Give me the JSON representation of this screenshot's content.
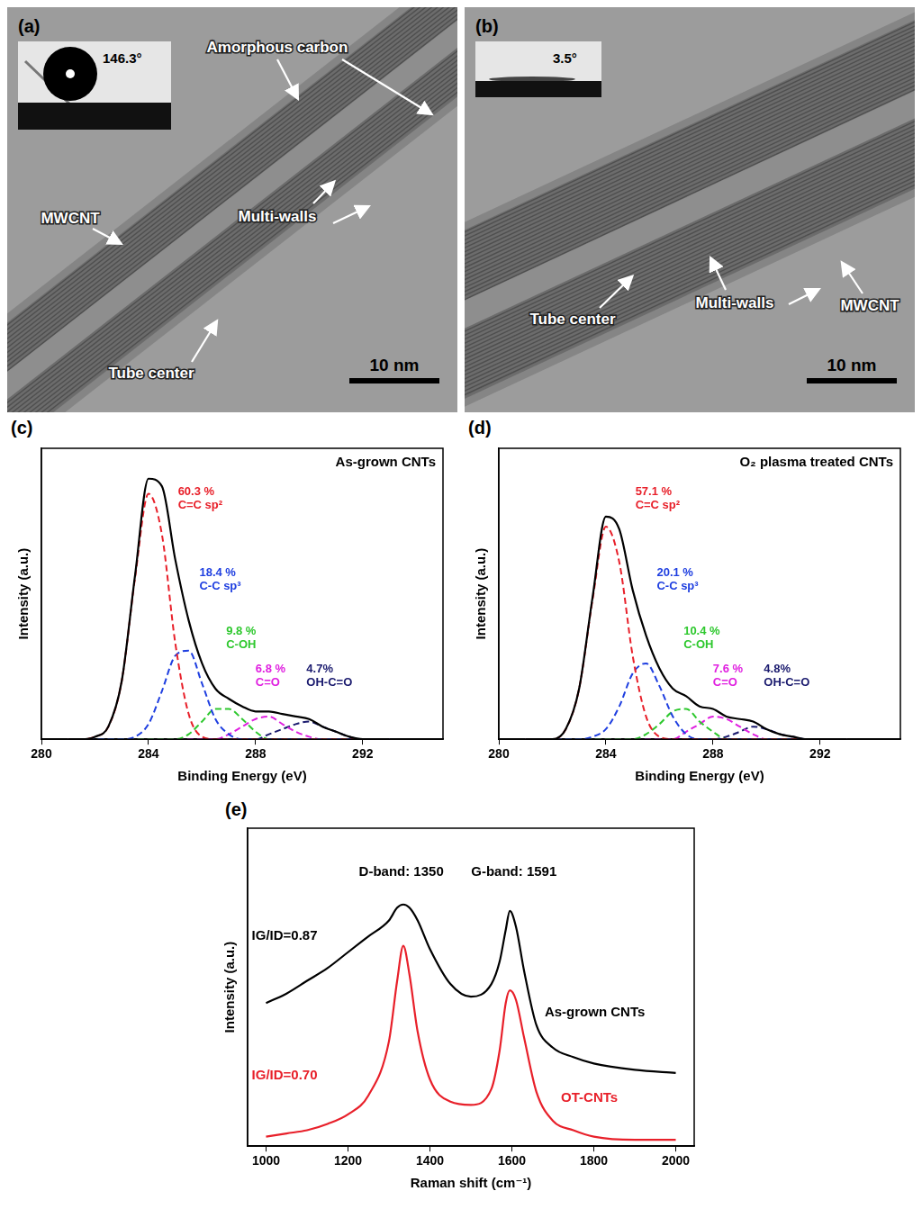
{
  "images": [
    {
      "panel": "(a)",
      "contact_angle": "146.3°",
      "labels": [
        "Amorphous carbon",
        "MWCNT",
        "Multi-walls",
        "Tube center"
      ],
      "scale_bar": "10 nm"
    },
    {
      "panel": "(b)",
      "contact_angle": "3.5°",
      "labels": [
        "Tube center",
        "Multi-walls",
        "MWCNT"
      ],
      "scale_bar": "10 nm"
    }
  ],
  "chart_data": [
    {
      "panel": "(c)",
      "type": "line",
      "title": "As-grown CNTs",
      "x_label": "Binding Energy (eV)",
      "y_label": "Intensity (a.u.)",
      "x": [
        281,
        281.5,
        282,
        282.5,
        283,
        283.5,
        284,
        284.5,
        285,
        285.5,
        286,
        286.5,
        287,
        287.5,
        288,
        288.5,
        289,
        289.5,
        290,
        290.5,
        291,
        291.5,
        292,
        292.5,
        293
      ],
      "xlim": [
        280,
        295
      ],
      "xticks": [
        280,
        284,
        288,
        292
      ],
      "ylim": [
        0,
        1.15
      ],
      "yticks": [],
      "tick_labels": "x",
      "grid": false,
      "series": [
        {
          "color": "#000000",
          "line_style": "solid",
          "values": [
            0,
            0,
            0.01,
            0.05,
            0.23,
            0.65,
            1.03,
            1.0,
            0.71,
            0.47,
            0.3,
            0.2,
            0.16,
            0.13,
            0.11,
            0.11,
            0.1,
            0.09,
            0.08,
            0.05,
            0.03,
            0.01,
            0,
            0,
            0
          ]
        },
        {
          "name": "C=C sp²",
          "label": "60.3 %",
          "color": "#e8202a",
          "line_style": "dashed",
          "values": [
            0,
            0,
            0.01,
            0.05,
            0.23,
            0.64,
            0.97,
            0.81,
            0.38,
            0.1,
            0.01,
            0,
            0,
            0,
            0,
            0,
            0,
            0,
            0,
            0,
            0,
            0,
            0,
            0,
            0
          ]
        },
        {
          "name": "C-C sp³",
          "label": "18.4 %",
          "color": "#1f3fe0",
          "line_style": "dashed",
          "values": [
            0,
            0,
            0,
            0,
            0,
            0.01,
            0.06,
            0.19,
            0.33,
            0.35,
            0.22,
            0.08,
            0.02,
            0,
            0,
            0,
            0,
            0,
            0,
            0,
            0,
            0,
            0,
            0,
            0
          ]
        },
        {
          "name": "C-OH",
          "label": "9.8 %",
          "color": "#2ec82e",
          "line_style": "dashed",
          "values": [
            0,
            0,
            0,
            0,
            0,
            0,
            0,
            0,
            0,
            0.02,
            0.07,
            0.12,
            0.12,
            0.08,
            0.03,
            0,
            0,
            0,
            0,
            0,
            0,
            0,
            0,
            0,
            0
          ]
        },
        {
          "name": "C=O",
          "label": "6.8 %",
          "color": "#e020e0",
          "line_style": "dashed",
          "values": [
            0,
            0,
            0,
            0,
            0,
            0,
            0,
            0,
            0,
            0,
            0,
            0,
            0.02,
            0.05,
            0.08,
            0.09,
            0.06,
            0.03,
            0.01,
            0,
            0,
            0,
            0,
            0,
            0
          ]
        },
        {
          "name": "OH-C=O",
          "label": "4.7%",
          "color": "#1a1a6e",
          "line_style": "dashed",
          "values": [
            0,
            0,
            0,
            0,
            0,
            0,
            0,
            0,
            0,
            0,
            0,
            0,
            0,
            0,
            0,
            0.02,
            0.04,
            0.06,
            0.07,
            0.05,
            0.03,
            0.01,
            0,
            0,
            0
          ]
        }
      ]
    },
    {
      "panel": "(d)",
      "type": "line",
      "title": "O₂ plasma treated CNTs",
      "x_label": "Binding Energy (eV)",
      "y_label": "Intensity (a.u.)",
      "x": [
        281,
        281.5,
        282,
        282.5,
        283,
        283.5,
        284,
        284.5,
        285,
        285.5,
        286,
        286.5,
        287,
        287.5,
        288,
        288.5,
        289,
        289.5,
        290,
        290.5,
        291,
        291.5,
        292,
        292.5,
        293
      ],
      "xlim": [
        280,
        295
      ],
      "xticks": [
        280,
        284,
        288,
        292
      ],
      "ylim": [
        0,
        1.15
      ],
      "yticks": [],
      "tick_labels": "x",
      "grid": false,
      "series": [
        {
          "color": "#000000",
          "line_style": "solid",
          "values": [
            0,
            0,
            0,
            0.04,
            0.2,
            0.56,
            0.88,
            0.83,
            0.59,
            0.41,
            0.28,
            0.2,
            0.17,
            0.13,
            0.12,
            0.09,
            0.08,
            0.07,
            0.04,
            0.02,
            0.01,
            0,
            0,
            0,
            0
          ]
        },
        {
          "name": "C=C sp²",
          "label": "57.1 %",
          "color": "#e8202a",
          "line_style": "dashed",
          "values": [
            0,
            0,
            0,
            0.04,
            0.2,
            0.55,
            0.84,
            0.7,
            0.33,
            0.09,
            0.01,
            0,
            0,
            0,
            0,
            0,
            0,
            0,
            0,
            0,
            0,
            0,
            0,
            0,
            0
          ]
        },
        {
          "name": "C-C sp³",
          "label": "20.1 %",
          "color": "#1f3fe0",
          "line_style": "dashed",
          "values": [
            0,
            0,
            0,
            0,
            0,
            0.01,
            0.04,
            0.13,
            0.26,
            0.3,
            0.21,
            0.09,
            0.02,
            0,
            0,
            0,
            0,
            0,
            0,
            0,
            0,
            0,
            0,
            0,
            0
          ]
        },
        {
          "name": "C-OH",
          "label": "10.4 %",
          "color": "#2ec82e",
          "line_style": "dashed",
          "values": [
            0,
            0,
            0,
            0,
            0,
            0,
            0,
            0,
            0,
            0.02,
            0.06,
            0.11,
            0.12,
            0.07,
            0.03,
            0,
            0,
            0,
            0,
            0,
            0,
            0,
            0,
            0,
            0
          ]
        },
        {
          "name": "C=O",
          "label": "7.6 %",
          "color": "#e020e0",
          "line_style": "dashed",
          "values": [
            0,
            0,
            0,
            0,
            0,
            0,
            0,
            0,
            0,
            0,
            0,
            0,
            0.03,
            0.06,
            0.09,
            0.08,
            0.05,
            0.02,
            0,
            0,
            0,
            0,
            0,
            0,
            0
          ]
        },
        {
          "name": "OH-C=O",
          "label": "4.8%",
          "color": "#1a1a6e",
          "line_style": "dashed",
          "values": [
            0,
            0,
            0,
            0,
            0,
            0,
            0,
            0,
            0,
            0,
            0,
            0,
            0,
            0,
            0,
            0.01,
            0.03,
            0.05,
            0.04,
            0.02,
            0.01,
            0,
            0,
            0,
            0
          ]
        }
      ]
    },
    {
      "panel": "(e)",
      "type": "line",
      "x_label": "Raman shift (cm⁻¹)",
      "y_label": "Intensity (a.u.)",
      "x": [
        1000,
        1050,
        1100,
        1150,
        1200,
        1250,
        1300,
        1320,
        1335,
        1350,
        1370,
        1400,
        1450,
        1500,
        1550,
        1570,
        1585,
        1595,
        1610,
        1630,
        1660,
        1700,
        1750,
        1800,
        1900,
        2000
      ],
      "xlim": [
        955,
        2045
      ],
      "xticks": [
        1000,
        1200,
        1400,
        1600,
        1800,
        2000
      ],
      "ylim": [
        0,
        100
      ],
      "yticks": [],
      "tick_labels": "x",
      "grid": false,
      "band_labels": [
        "D-band: 1350",
        "G-band: 1591"
      ],
      "series": [
        {
          "name": "As-grown CNTs",
          "ratio_label": "IG/ID=0.87",
          "color": "#000000",
          "line_style": "solid",
          "values": [
            45,
            48,
            52,
            56,
            61,
            66,
            71,
            75,
            76,
            75,
            71,
            62,
            51,
            47,
            51,
            58,
            68,
            74,
            69,
            55,
            38,
            31,
            28,
            26,
            24,
            23
          ]
        },
        {
          "name": "OT-CNTs",
          "ratio_label": "IG/ID=0.70",
          "color": "#e8202a",
          "line_style": "solid",
          "values": [
            3,
            4,
            5,
            7,
            10,
            16,
            33,
            52,
            63,
            54,
            36,
            21,
            14,
            13,
            18,
            30,
            45,
            49,
            46,
            34,
            17,
            8,
            5,
            3,
            2,
            2
          ]
        }
      ]
    }
  ]
}
